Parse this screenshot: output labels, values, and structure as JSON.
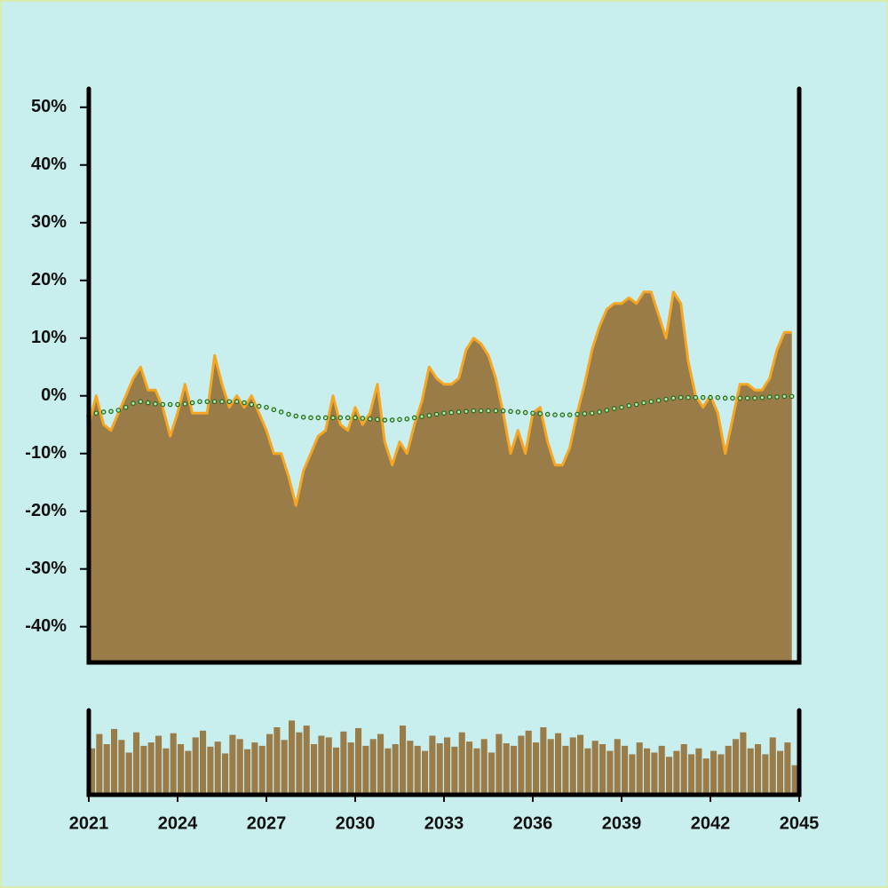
{
  "chart_data": [
    {
      "type": "area",
      "x": [
        2021,
        2021.25,
        2021.5,
        2021.75,
        2022,
        2022.25,
        2022.5,
        2022.75,
        2023,
        2023.25,
        2023.5,
        2023.75,
        2024,
        2024.25,
        2024.5,
        2024.75,
        2025,
        2025.25,
        2025.5,
        2025.75,
        2026,
        2026.25,
        2026.5,
        2026.75,
        2027,
        2027.25,
        2027.5,
        2027.75,
        2028,
        2028.25,
        2028.5,
        2028.75,
        2029,
        2029.25,
        2029.5,
        2029.75,
        2030,
        2030.25,
        2030.5,
        2030.75,
        2031,
        2031.25,
        2031.5,
        2031.75,
        2032,
        2032.25,
        2032.5,
        2032.75,
        2033,
        2033.25,
        2033.5,
        2033.75,
        2034,
        2034.25,
        2034.5,
        2034.75,
        2035,
        2035.25,
        2035.5,
        2035.75,
        2036,
        2036.25,
        2036.5,
        2036.75,
        2037,
        2037.25,
        2037.5,
        2037.75,
        2038,
        2038.25,
        2038.5,
        2038.75,
        2039,
        2039.25,
        2039.5,
        2039.75,
        2040,
        2040.25,
        2040.5,
        2040.75,
        2041,
        2041.25,
        2041.5,
        2041.75,
        2042,
        2042.25,
        2042.5,
        2042.75,
        2043,
        2043.25,
        2043.5,
        2043.75,
        2044,
        2044.25,
        2044.5,
        2044.75
      ],
      "series": [
        {
          "type": "area",
          "color": "#f5a623",
          "fill": "#9a7c48",
          "values": [
            -5,
            0,
            -5,
            -6,
            -3,
            0,
            3,
            5,
            1,
            1,
            -2,
            -7,
            -3,
            2,
            -3,
            -3,
            -3,
            7,
            2,
            -2,
            0,
            -2,
            0,
            -3,
            -6,
            -10,
            -10,
            -14,
            -19,
            -13,
            -10,
            -7,
            -6,
            0,
            -5,
            -6,
            -2,
            -5,
            -3,
            2,
            -8,
            -12,
            -8,
            -10,
            -5,
            -1,
            5,
            3,
            2,
            2,
            3,
            8,
            10,
            9,
            7,
            3,
            -3,
            -10,
            -6,
            -10,
            -3,
            -2,
            -8,
            -12,
            -12,
            -9,
            -3,
            2,
            8,
            12,
            15,
            16,
            16,
            17,
            16,
            18,
            18,
            14,
            10,
            18,
            16,
            6,
            0,
            -2,
            0,
            -3,
            -10,
            -4,
            2,
            2,
            1,
            1,
            3,
            8,
            11,
            11
          ]
        },
        {
          "type": "line",
          "color": "#1e6b1e",
          "marker_fill": "#b8e6b0",
          "values": [
            -3.5,
            -3,
            -2.8,
            -2.7,
            -2.5,
            -2,
            -1.3,
            -1,
            -1.2,
            -1.4,
            -1.5,
            -1.5,
            -1.5,
            -1.4,
            -1.2,
            -1,
            -1,
            -1,
            -1,
            -1,
            -1,
            -1.2,
            -1.5,
            -1.8,
            -2,
            -2.4,
            -2.8,
            -3.2,
            -3.5,
            -3.7,
            -3.8,
            -3.8,
            -3.8,
            -3.8,
            -3.8,
            -3.8,
            -3.8,
            -3.9,
            -4,
            -4.1,
            -4.2,
            -4.2,
            -4.1,
            -4,
            -3.8,
            -3.6,
            -3.4,
            -3.2,
            -3,
            -2.9,
            -2.8,
            -2.7,
            -2.6,
            -2.6,
            -2.6,
            -2.6,
            -2.6,
            -2.7,
            -2.8,
            -2.9,
            -3,
            -3.1,
            -3.2,
            -3.3,
            -3.3,
            -3.3,
            -3.2,
            -3.1,
            -3,
            -2.8,
            -2.5,
            -2.2,
            -2,
            -1.7,
            -1.5,
            -1.2,
            -1,
            -0.8,
            -0.6,
            -0.4,
            -0.3,
            -0.3,
            -0.3,
            -0.3,
            -0.3,
            -0.3,
            -0.4,
            -0.4,
            -0.4,
            -0.4,
            -0.4,
            -0.3,
            -0.2,
            -0.2,
            -0.1,
            -0.1
          ]
        }
      ],
      "xlim": [
        2021,
        2045
      ],
      "ylim": [
        -46.2,
        53.2
      ],
      "yticks": [
        {
          "value": 50,
          "label": "50%"
        },
        {
          "value": 40,
          "label": "40%"
        },
        {
          "value": 30,
          "label": "30%"
        },
        {
          "value": 20,
          "label": "20%"
        },
        {
          "value": 10,
          "label": "10%"
        },
        {
          "value": 0,
          "label": "0%"
        },
        {
          "value": -10,
          "label": "-10%"
        },
        {
          "value": -20,
          "label": "-20%"
        },
        {
          "value": -30,
          "label": "-30%"
        },
        {
          "value": -40,
          "label": "-40%"
        }
      ]
    },
    {
      "type": "bar",
      "color": "#9a7c48",
      "x": [
        2021,
        2021.25,
        2021.5,
        2021.75,
        2022,
        2022.25,
        2022.5,
        2022.75,
        2023,
        2023.25,
        2023.5,
        2023.75,
        2024,
        2024.25,
        2024.5,
        2024.75,
        2025,
        2025.25,
        2025.5,
        2025.75,
        2026,
        2026.25,
        2026.5,
        2026.75,
        2027,
        2027.25,
        2027.5,
        2027.75,
        2028,
        2028.25,
        2028.5,
        2028.75,
        2029,
        2029.25,
        2029.5,
        2029.75,
        2030,
        2030.25,
        2030.5,
        2030.75,
        2031,
        2031.25,
        2031.5,
        2031.75,
        2032,
        2032.25,
        2032.5,
        2032.75,
        2033,
        2033.25,
        2033.5,
        2033.75,
        2034,
        2034.25,
        2034.5,
        2034.75,
        2035,
        2035.25,
        2035.5,
        2035.75,
        2036,
        2036.25,
        2036.5,
        2036.75,
        2037,
        2037.25,
        2037.5,
        2037.75,
        2038,
        2038.25,
        2038.5,
        2038.75,
        2039,
        2039.25,
        2039.5,
        2039.75,
        2040,
        2040.25,
        2040.5,
        2040.75,
        2041,
        2041.25,
        2041.5,
        2041.75,
        2042,
        2042.25,
        2042.5,
        2042.75,
        2043,
        2043.25,
        2043.5,
        2043.75,
        2044,
        2044.25,
        2044.5,
        2044.75
      ],
      "values": [
        55,
        72,
        60,
        78,
        65,
        50,
        74,
        58,
        62,
        70,
        55,
        73,
        60,
        52,
        68,
        76,
        57,
        63,
        49,
        71,
        66,
        54,
        62,
        58,
        72,
        80,
        65,
        88,
        74,
        82,
        60,
        70,
        68,
        56,
        75,
        62,
        79,
        58,
        66,
        72,
        55,
        60,
        82,
        64,
        58,
        52,
        70,
        61,
        68,
        57,
        74,
        63,
        55,
        66,
        50,
        72,
        61,
        58,
        70,
        76,
        62,
        80,
        66,
        73,
        58,
        68,
        71,
        55,
        64,
        60,
        52,
        66,
        58,
        48,
        62,
        55,
        50,
        58,
        45,
        52,
        60,
        48,
        55,
        43,
        52,
        48,
        58,
        66,
        74,
        55,
        60,
        48,
        68,
        52,
        62,
        35
      ],
      "xlim": [
        2021,
        2045
      ],
      "ylim": [
        0,
        100
      ],
      "xticks": [
        2021,
        2024,
        2027,
        2030,
        2033,
        2036,
        2039,
        2042,
        2045
      ]
    }
  ]
}
